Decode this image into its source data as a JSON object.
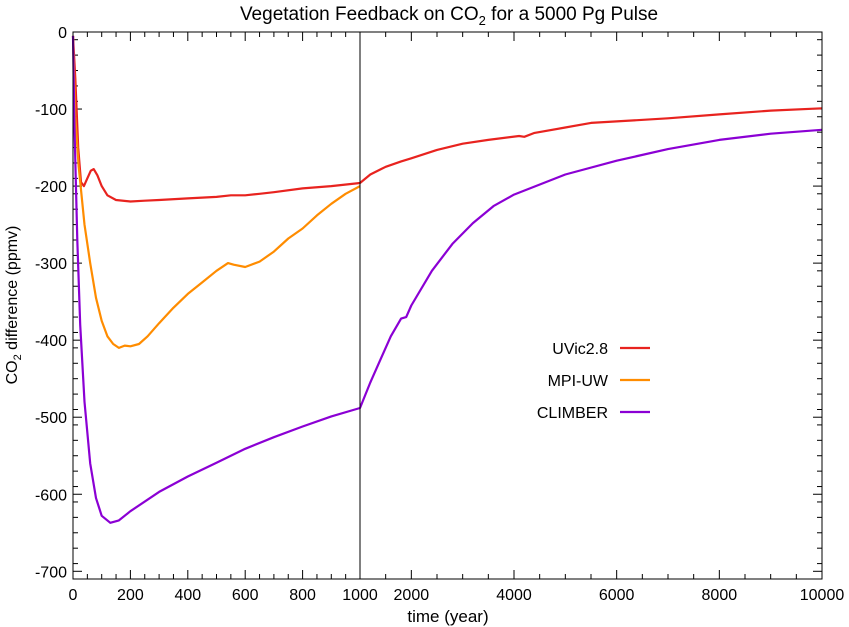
{
  "chart_data": {
    "type": "line",
    "title": {
      "pre": "Vegetation Feedback on CO",
      "sub": "2",
      "post": " for a 5000 Pg Pulse"
    },
    "ylabel": {
      "pre": "CO",
      "sub": "2",
      "post": " difference (ppmv)"
    },
    "xlabel": "time (year)",
    "ylim": [
      -710,
      0
    ],
    "y_ticks": [
      0,
      -100,
      -200,
      -300,
      -400,
      -500,
      -600,
      -700
    ],
    "y_tick_labels": [
      "0",
      "-100",
      "-200",
      "-300",
      "-400",
      "-500",
      "-600",
      "-700"
    ],
    "x_segments": [
      {
        "range": [
          0,
          1000
        ],
        "ticks": [
          0,
          200,
          400,
          600,
          800,
          1000
        ],
        "tick_labels": [
          "0",
          "200",
          "400",
          "600",
          "800",
          "1000"
        ]
      },
      {
        "range": [
          1000,
          10000
        ],
        "ticks": [
          2000,
          4000,
          6000,
          8000,
          10000
        ],
        "tick_labels": [
          "2000",
          "4000",
          "6000",
          "8000",
          "10000"
        ]
      }
    ],
    "legend_placement": "center-right",
    "series": [
      {
        "name": "UVic2.8",
        "color": "#e8231f",
        "points": [
          [
            0,
            -5
          ],
          [
            8,
            -60
          ],
          [
            18,
            -150
          ],
          [
            28,
            -195
          ],
          [
            38,
            -200
          ],
          [
            50,
            -190
          ],
          [
            62,
            -180
          ],
          [
            72,
            -178
          ],
          [
            85,
            -186
          ],
          [
            100,
            -200
          ],
          [
            120,
            -212
          ],
          [
            150,
            -218
          ],
          [
            200,
            -220
          ],
          [
            250,
            -219
          ],
          [
            300,
            -218
          ],
          [
            400,
            -216
          ],
          [
            500,
            -214
          ],
          [
            550,
            -212
          ],
          [
            600,
            -212
          ],
          [
            650,
            -210
          ],
          [
            700,
            -208
          ],
          [
            800,
            -203
          ],
          [
            900,
            -200
          ],
          [
            1000,
            -196
          ],
          [
            1200,
            -185
          ],
          [
            1500,
            -175
          ],
          [
            1800,
            -168
          ],
          [
            2000,
            -164
          ],
          [
            2500,
            -153
          ],
          [
            3000,
            -145
          ],
          [
            3500,
            -140
          ],
          [
            4100,
            -135
          ],
          [
            4200,
            -136
          ],
          [
            4400,
            -131
          ],
          [
            5000,
            -124
          ],
          [
            5500,
            -118
          ],
          [
            6000,
            -116
          ],
          [
            7000,
            -112
          ],
          [
            8000,
            -107
          ],
          [
            9000,
            -102
          ],
          [
            10000,
            -99
          ]
        ]
      },
      {
        "name": "MPI-UW",
        "color": "#ff8c00",
        "points": [
          [
            0,
            -5
          ],
          [
            8,
            -110
          ],
          [
            20,
            -175
          ],
          [
            40,
            -250
          ],
          [
            60,
            -300
          ],
          [
            80,
            -345
          ],
          [
            100,
            -375
          ],
          [
            120,
            -395
          ],
          [
            140,
            -405
          ],
          [
            160,
            -410
          ],
          [
            180,
            -407
          ],
          [
            200,
            -408
          ],
          [
            230,
            -405
          ],
          [
            260,
            -395
          ],
          [
            300,
            -378
          ],
          [
            350,
            -358
          ],
          [
            400,
            -340
          ],
          [
            450,
            -325
          ],
          [
            500,
            -310
          ],
          [
            540,
            -300
          ],
          [
            560,
            -302
          ],
          [
            600,
            -305
          ],
          [
            650,
            -298
          ],
          [
            700,
            -285
          ],
          [
            750,
            -268
          ],
          [
            800,
            -255
          ],
          [
            850,
            -238
          ],
          [
            900,
            -223
          ],
          [
            950,
            -210
          ],
          [
            1000,
            -200
          ]
        ]
      },
      {
        "name": "CLIMBER",
        "color": "#8b00d4",
        "points": [
          [
            0,
            -5
          ],
          [
            5,
            -120
          ],
          [
            15,
            -270
          ],
          [
            25,
            -380
          ],
          [
            40,
            -480
          ],
          [
            60,
            -560
          ],
          [
            80,
            -605
          ],
          [
            100,
            -628
          ],
          [
            130,
            -637
          ],
          [
            160,
            -634
          ],
          [
            200,
            -622
          ],
          [
            300,
            -597
          ],
          [
            400,
            -577
          ],
          [
            500,
            -559
          ],
          [
            600,
            -541
          ],
          [
            700,
            -526
          ],
          [
            800,
            -512
          ],
          [
            900,
            -499
          ],
          [
            1000,
            -488
          ],
          [
            1200,
            -455
          ],
          [
            1400,
            -425
          ],
          [
            1600,
            -395
          ],
          [
            1800,
            -372
          ],
          [
            1900,
            -370
          ],
          [
            2000,
            -355
          ],
          [
            2400,
            -310
          ],
          [
            2800,
            -275
          ],
          [
            3200,
            -248
          ],
          [
            3600,
            -226
          ],
          [
            4000,
            -211
          ],
          [
            5000,
            -185
          ],
          [
            6000,
            -167
          ],
          [
            7000,
            -152
          ],
          [
            8000,
            -140
          ],
          [
            9000,
            -132
          ],
          [
            10000,
            -127
          ]
        ]
      }
    ]
  }
}
